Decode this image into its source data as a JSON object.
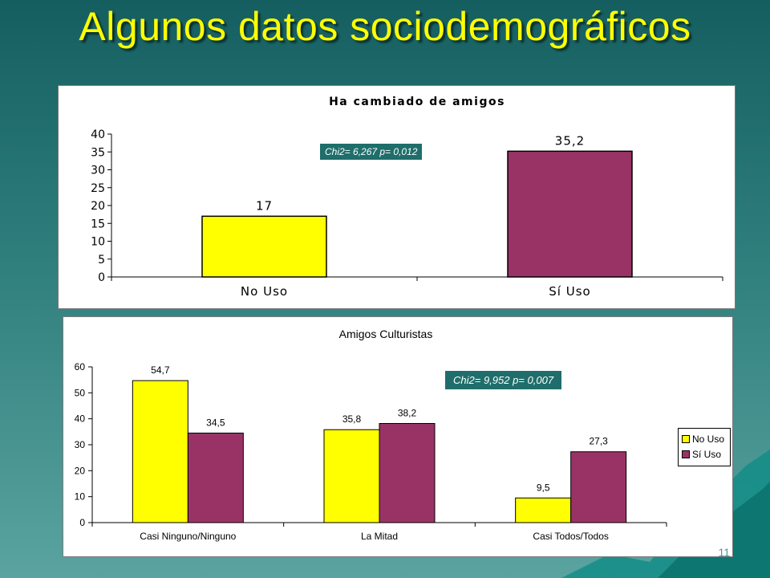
{
  "slide": {
    "title": "Algunos datos sociodemográficos",
    "page_number": "11"
  },
  "colors": {
    "no_uso": "#ffff00",
    "si_uso": "#993366",
    "chi_box": "#1f6e6b",
    "title": "#ffff00"
  },
  "chart_data": [
    {
      "type": "bar",
      "title": "Ha cambiado de amigos",
      "categories": [
        "No Uso",
        "Sí Uso"
      ],
      "values": [
        17,
        35.2
      ],
      "data_labels": [
        "17",
        "35,2"
      ],
      "ylim": [
        0,
        40
      ],
      "yticks": [
        0,
        5,
        10,
        15,
        20,
        25,
        30,
        35,
        40
      ],
      "annotation": "Chi2= 6,267 p= 0,012",
      "legend": null,
      "grid": false
    },
    {
      "type": "bar",
      "title": "Amigos Culturistas",
      "categories": [
        "Casi Ninguno/Ninguno",
        "La Mitad",
        "Casi Todos/Todos"
      ],
      "series": [
        {
          "name": "No Uso",
          "values": [
            54.7,
            35.8,
            9.5
          ],
          "labels": [
            "54,7",
            "35,8",
            "9,5"
          ]
        },
        {
          "name": "Sí Uso",
          "values": [
            34.5,
            38.2,
            27.3
          ],
          "labels": [
            "34,5",
            "38,2",
            "27,3"
          ]
        }
      ],
      "ylim": [
        0,
        60
      ],
      "yticks": [
        0,
        10,
        20,
        30,
        40,
        50,
        60
      ],
      "annotation": "Chi2= 9,952 p= 0,007",
      "legend": "right",
      "grid": false
    }
  ]
}
